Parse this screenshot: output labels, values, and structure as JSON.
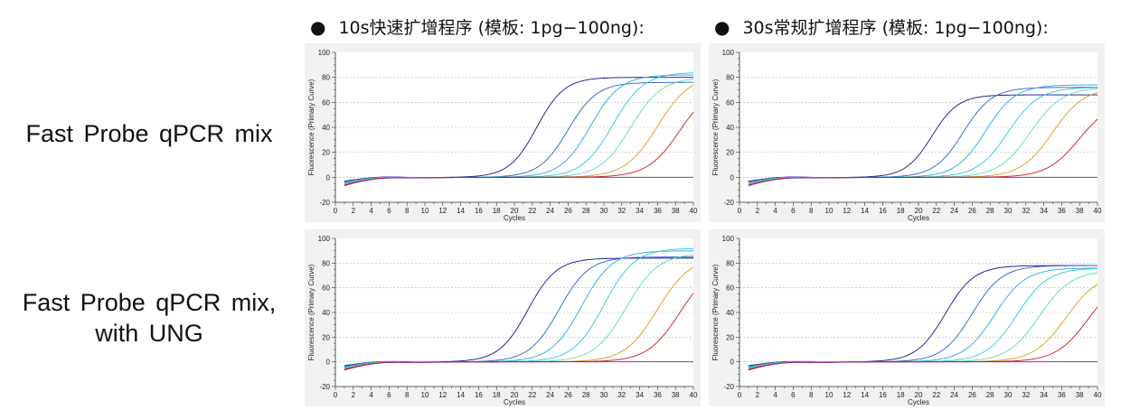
{
  "column_headers": [
    {
      "bullet": "●",
      "text": "10s快速扩增程序 (模板: 1pg−100ng):"
    },
    {
      "bullet": "●",
      "text": "30s常规扩增程序 (模板: 1pg−100ng):"
    }
  ],
  "row_labels": [
    {
      "line1": "Fast Probe qPCR mix",
      "line2": ""
    },
    {
      "line1": "Fast Probe qPCR mix,",
      "line2": "with UNG"
    }
  ],
  "series_colors": [
    "#12128a",
    "#2a5fc8",
    "#2aa6e0",
    "#28c8d8",
    "#5ad8b8",
    "#d89a20",
    "#d01818",
    "#8a1a9a"
  ],
  "chart_data": [
    {
      "type": "line",
      "xlabel": "Cycles",
      "ylabel": "Fluorescence (Primary Curve)",
      "xlim": [
        0,
        40
      ],
      "ylim": [
        -20,
        100
      ],
      "xticks": [
        0,
        2,
        4,
        6,
        8,
        10,
        12,
        14,
        16,
        18,
        20,
        22,
        24,
        26,
        28,
        30,
        32,
        34,
        36,
        38,
        40
      ],
      "yticks": [
        -20,
        0,
        20,
        40,
        60,
        80,
        100
      ],
      "grid": true,
      "series": [
        {
          "color_index": 0,
          "midpoint": 22.5,
          "plateau": 80,
          "steep": 0.65
        },
        {
          "color_index": 1,
          "midpoint": 26.0,
          "plateau": 76,
          "steep": 0.62
        },
        {
          "color_index": 2,
          "midpoint": 28.5,
          "plateau": 82,
          "steep": 0.6
        },
        {
          "color_index": 3,
          "midpoint": 31.0,
          "plateau": 84,
          "steep": 0.58
        },
        {
          "color_index": 4,
          "midpoint": 33.0,
          "plateau": 80,
          "steep": 0.58
        },
        {
          "color_index": 5,
          "midpoint": 36.0,
          "plateau": 82,
          "steep": 0.55
        },
        {
          "color_index": 6,
          "midpoint": 38.5,
          "plateau": 75,
          "steep": 0.55
        },
        {
          "color_index": 7,
          "midpoint": null,
          "plateau": 0,
          "steep": 0
        }
      ]
    },
    {
      "type": "line",
      "xlabel": "Cycles",
      "ylabel": "Fluorescence (Primary Curve)",
      "xlim": [
        0,
        40
      ],
      "ylim": [
        -20,
        100
      ],
      "xticks": [
        0,
        2,
        4,
        6,
        8,
        10,
        12,
        14,
        16,
        18,
        20,
        22,
        24,
        26,
        28,
        30,
        32,
        34,
        36,
        38,
        40
      ],
      "yticks": [
        -20,
        0,
        20,
        40,
        60,
        80,
        100
      ],
      "grid": true,
      "series": [
        {
          "color_index": 0,
          "midpoint": 21.5,
          "plateau": 66,
          "steep": 0.68
        },
        {
          "color_index": 1,
          "midpoint": 25.0,
          "plateau": 72,
          "steep": 0.62
        },
        {
          "color_index": 2,
          "midpoint": 27.5,
          "plateau": 74,
          "steep": 0.6
        },
        {
          "color_index": 3,
          "midpoint": 30.0,
          "plateau": 72,
          "steep": 0.58
        },
        {
          "color_index": 4,
          "midpoint": 32.5,
          "plateau": 72,
          "steep": 0.56
        },
        {
          "color_index": 5,
          "midpoint": 35.0,
          "plateau": 72,
          "steep": 0.56
        },
        {
          "color_index": 6,
          "midpoint": 38.0,
          "plateau": 62,
          "steep": 0.55
        },
        {
          "color_index": 7,
          "midpoint": null,
          "plateau": 0,
          "steep": 0
        }
      ]
    },
    {
      "type": "line",
      "xlabel": "Cycles",
      "ylabel": "Fluorescence (Primary Curve)",
      "xlim": [
        0,
        40
      ],
      "ylim": [
        -20,
        100
      ],
      "xticks": [
        0,
        2,
        4,
        6,
        8,
        10,
        12,
        14,
        16,
        18,
        20,
        22,
        24,
        26,
        28,
        30,
        32,
        34,
        36,
        38,
        40
      ],
      "yticks": [
        -20,
        0,
        20,
        40,
        60,
        80,
        100
      ],
      "grid": true,
      "series": [
        {
          "color_index": 0,
          "midpoint": 21.5,
          "plateau": 84,
          "steep": 0.62
        },
        {
          "color_index": 1,
          "midpoint": 25.0,
          "plateau": 85,
          "steep": 0.6
        },
        {
          "color_index": 2,
          "midpoint": 27.5,
          "plateau": 90,
          "steep": 0.58
        },
        {
          "color_index": 3,
          "midpoint": 30.0,
          "plateau": 92,
          "steep": 0.58
        },
        {
          "color_index": 4,
          "midpoint": 32.5,
          "plateau": 88,
          "steep": 0.56
        },
        {
          "color_index": 5,
          "midpoint": 36.0,
          "plateau": 85,
          "steep": 0.55
        },
        {
          "color_index": 6,
          "midpoint": 38.5,
          "plateau": 80,
          "steep": 0.55
        },
        {
          "color_index": 7,
          "midpoint": null,
          "plateau": 0,
          "steep": 0
        }
      ]
    },
    {
      "type": "line",
      "xlabel": "Cycles",
      "ylabel": "Fluorescence (Primary Curve)",
      "xlim": [
        0,
        40
      ],
      "ylim": [
        -20,
        100
      ],
      "xticks": [
        0,
        2,
        4,
        6,
        8,
        10,
        12,
        14,
        16,
        18,
        20,
        22,
        24,
        26,
        28,
        30,
        32,
        34,
        36,
        38,
        40
      ],
      "yticks": [
        -20,
        0,
        20,
        40,
        60,
        80,
        100
      ],
      "grid": true,
      "series": [
        {
          "color_index": 0,
          "midpoint": 23.0,
          "plateau": 78,
          "steep": 0.62
        },
        {
          "color_index": 1,
          "midpoint": 26.0,
          "plateau": 78,
          "steep": 0.6
        },
        {
          "color_index": 2,
          "midpoint": 28.5,
          "plateau": 76,
          "steep": 0.58
        },
        {
          "color_index": 3,
          "midpoint": 31.0,
          "plateau": 76,
          "steep": 0.58
        },
        {
          "color_index": 4,
          "midpoint": 33.5,
          "plateau": 74,
          "steep": 0.56
        },
        {
          "color_index": 5,
          "midpoint": 36.5,
          "plateau": 72,
          "steep": 0.55
        },
        {
          "color_index": 6,
          "midpoint": 39.0,
          "plateau": 70,
          "steep": 0.55
        },
        {
          "color_index": 7,
          "midpoint": null,
          "plateau": 0,
          "steep": 0
        }
      ]
    }
  ]
}
